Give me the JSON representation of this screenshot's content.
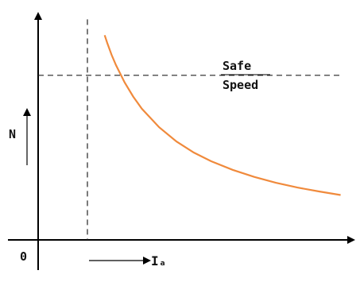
{
  "chart_data": {
    "type": "line",
    "title": "",
    "xlabel": "Iₐ",
    "ylabel": "N",
    "origin_label": "0",
    "series": [
      {
        "x": [
          0.77,
          0.8,
          0.85,
          0.9,
          1.0,
          1.1,
          1.2,
          1.4,
          1.6,
          1.8,
          2.0,
          2.25,
          2.5,
          2.75,
          3.0,
          3.25,
          3.5
        ],
        "y": [
          5.2,
          5.0,
          4.7,
          4.44,
          4.0,
          3.64,
          3.33,
          2.86,
          2.5,
          2.22,
          2.0,
          1.78,
          1.6,
          1.45,
          1.33,
          1.23,
          1.14
        ]
      }
    ],
    "annotation": {
      "line1": "Safe",
      "line2": "Speed"
    },
    "safe_speed": 4.18,
    "vertical_marker_x": 0.57,
    "xlim": [
      0,
      4.0
    ],
    "ylim": [
      0,
      5.75
    ],
    "grid": false,
    "colors": {
      "curve": "#f08a3c",
      "axes": "#000000",
      "dashed": "#222222"
    }
  }
}
